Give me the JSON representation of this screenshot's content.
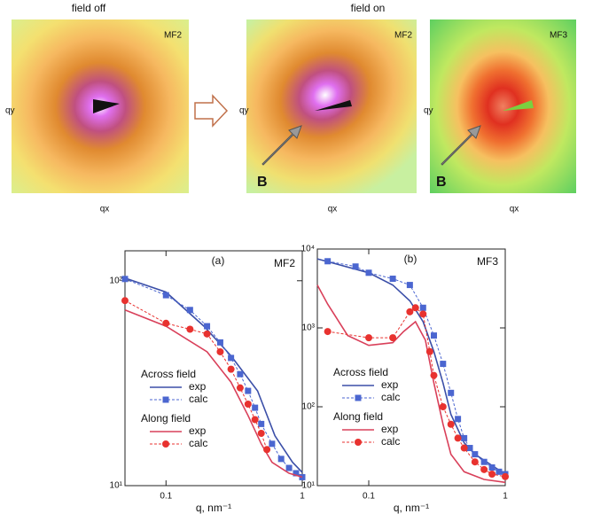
{
  "panels": {
    "headers": [
      "field off",
      "field on"
    ],
    "images": [
      {
        "label": "MF2",
        "x_label": "qx",
        "y_label": "qy"
      },
      {
        "label": "MF2",
        "x_label": "qx",
        "y_label": "qy",
        "arrow_label": "B"
      },
      {
        "label": "MF3",
        "x_label": "qx",
        "y_label": "qy",
        "arrow_label": "B"
      }
    ]
  },
  "chart_data": [
    {
      "type": "line",
      "annotations": [
        "(a)",
        "MF2"
      ],
      "x_label": "q, nm⁻¹",
      "log_x": true,
      "log_y": true,
      "xlim": [
        0.05,
        1
      ],
      "ylim": [
        10,
        140
      ],
      "xticks": [
        0.1,
        1
      ],
      "yticks": [
        {
          "value": 10,
          "label": "10¹"
        },
        {
          "value": 100,
          "label": "10²"
        }
      ],
      "groups": [
        {
          "title": "Across field",
          "series": [
            {
              "name": "exp",
              "color": "#3b4fa8",
              "style": "line",
              "x": [
                0.05,
                0.1,
                0.19,
                0.3,
                0.47,
                0.63,
                0.85,
                1
              ],
              "values": [
                103,
                88,
                60,
                43,
                29,
                17.5,
                13,
                11.6
              ]
            },
            {
              "name": "calc",
              "color": "#4b66d0",
              "style": "markers",
              "marker": "square",
              "x": [
                0.05,
                0.1,
                0.15,
                0.2,
                0.25,
                0.3,
                0.35,
                0.4,
                0.45,
                0.5,
                0.6,
                0.7,
                0.8,
                0.9,
                1
              ],
              "values": [
                102,
                85,
                72,
                60,
                50,
                42,
                35,
                29,
                24,
                20,
                16,
                13.5,
                12.2,
                11.5,
                11
              ]
            }
          ]
        },
        {
          "title": "Along field",
          "series": [
            {
              "name": "exp",
              "color": "#d9405a",
              "style": "line",
              "x": [
                0.05,
                0.1,
                0.2,
                0.3,
                0.4,
                0.5,
                0.6,
                0.8,
                1
              ],
              "values": [
                72,
                60,
                45,
                32,
                22,
                16,
                13,
                11.5,
                11
              ]
            },
            {
              "name": "calc",
              "color": "#e8322f",
              "style": "markers",
              "marker": "circle",
              "x": [
                0.05,
                0.1,
                0.15,
                0.2,
                0.25,
                0.3,
                0.35,
                0.4,
                0.45,
                0.5,
                0.55
              ],
              "values": [
                80,
                62,
                58,
                55,
                45,
                37,
                30,
                25,
                21,
                18,
                15
              ]
            }
          ]
        }
      ]
    },
    {
      "type": "line",
      "annotations": [
        "(b)",
        "MF3"
      ],
      "x_label": "q, nm⁻¹",
      "log_x": true,
      "log_y": true,
      "xlim": [
        0.042,
        1
      ],
      "ylim": [
        10,
        10000
      ],
      "xticks": [
        0.1,
        1
      ],
      "yticks": [
        {
          "value": 10,
          "label": "10¹"
        },
        {
          "value": 100,
          "label": "10²"
        },
        {
          "value": 1000,
          "label": "10³"
        },
        {
          "value": 10000,
          "label": "10⁴"
        }
      ],
      "groups": [
        {
          "title": "Across field",
          "series": [
            {
              "name": "exp",
              "color": "#3b4fa8",
              "style": "line",
              "x": [
                0.042,
                0.1,
                0.15,
                0.2,
                0.25,
                0.3,
                0.35,
                0.4,
                0.5,
                0.6,
                0.8,
                1
              ],
              "values": [
                7500,
                5000,
                3500,
                2200,
                1200,
                500,
                200,
                80,
                35,
                25,
                18,
                14
              ]
            },
            {
              "name": "calc",
              "color": "#4b66d0",
              "style": "markers",
              "marker": "square",
              "x": [
                0.05,
                0.08,
                0.1,
                0.15,
                0.2,
                0.25,
                0.3,
                0.35,
                0.4,
                0.45,
                0.5,
                0.55,
                0.6,
                0.7,
                0.8,
                0.9,
                1
              ],
              "values": [
                7000,
                6000,
                5000,
                4200,
                3500,
                1800,
                800,
                350,
                150,
                70,
                40,
                30,
                25,
                20,
                17,
                15,
                14
              ]
            }
          ]
        },
        {
          "title": "Along field",
          "series": [
            {
              "name": "exp",
              "color": "#d9405a",
              "style": "line",
              "x": [
                0.042,
                0.05,
                0.07,
                0.1,
                0.15,
                0.18,
                0.22,
                0.26,
                0.3,
                0.35,
                0.4,
                0.5,
                0.7,
                1
              ],
              "values": [
                3500,
                2000,
                800,
                600,
                650,
                900,
                1200,
                700,
                200,
                60,
                25,
                15,
                12,
                11
              ]
            },
            {
              "name": "calc",
              "color": "#e8322f",
              "style": "markers",
              "marker": "circle",
              "x": [
                0.05,
                0.1,
                0.15,
                0.2,
                0.22,
                0.25,
                0.28,
                0.3,
                0.35,
                0.4,
                0.45,
                0.5,
                0.6,
                0.7,
                0.8,
                1
              ],
              "values": [
                900,
                750,
                750,
                1600,
                1800,
                1500,
                500,
                250,
                100,
                60,
                40,
                30,
                20,
                16,
                14,
                13
              ]
            }
          ]
        }
      ]
    }
  ]
}
